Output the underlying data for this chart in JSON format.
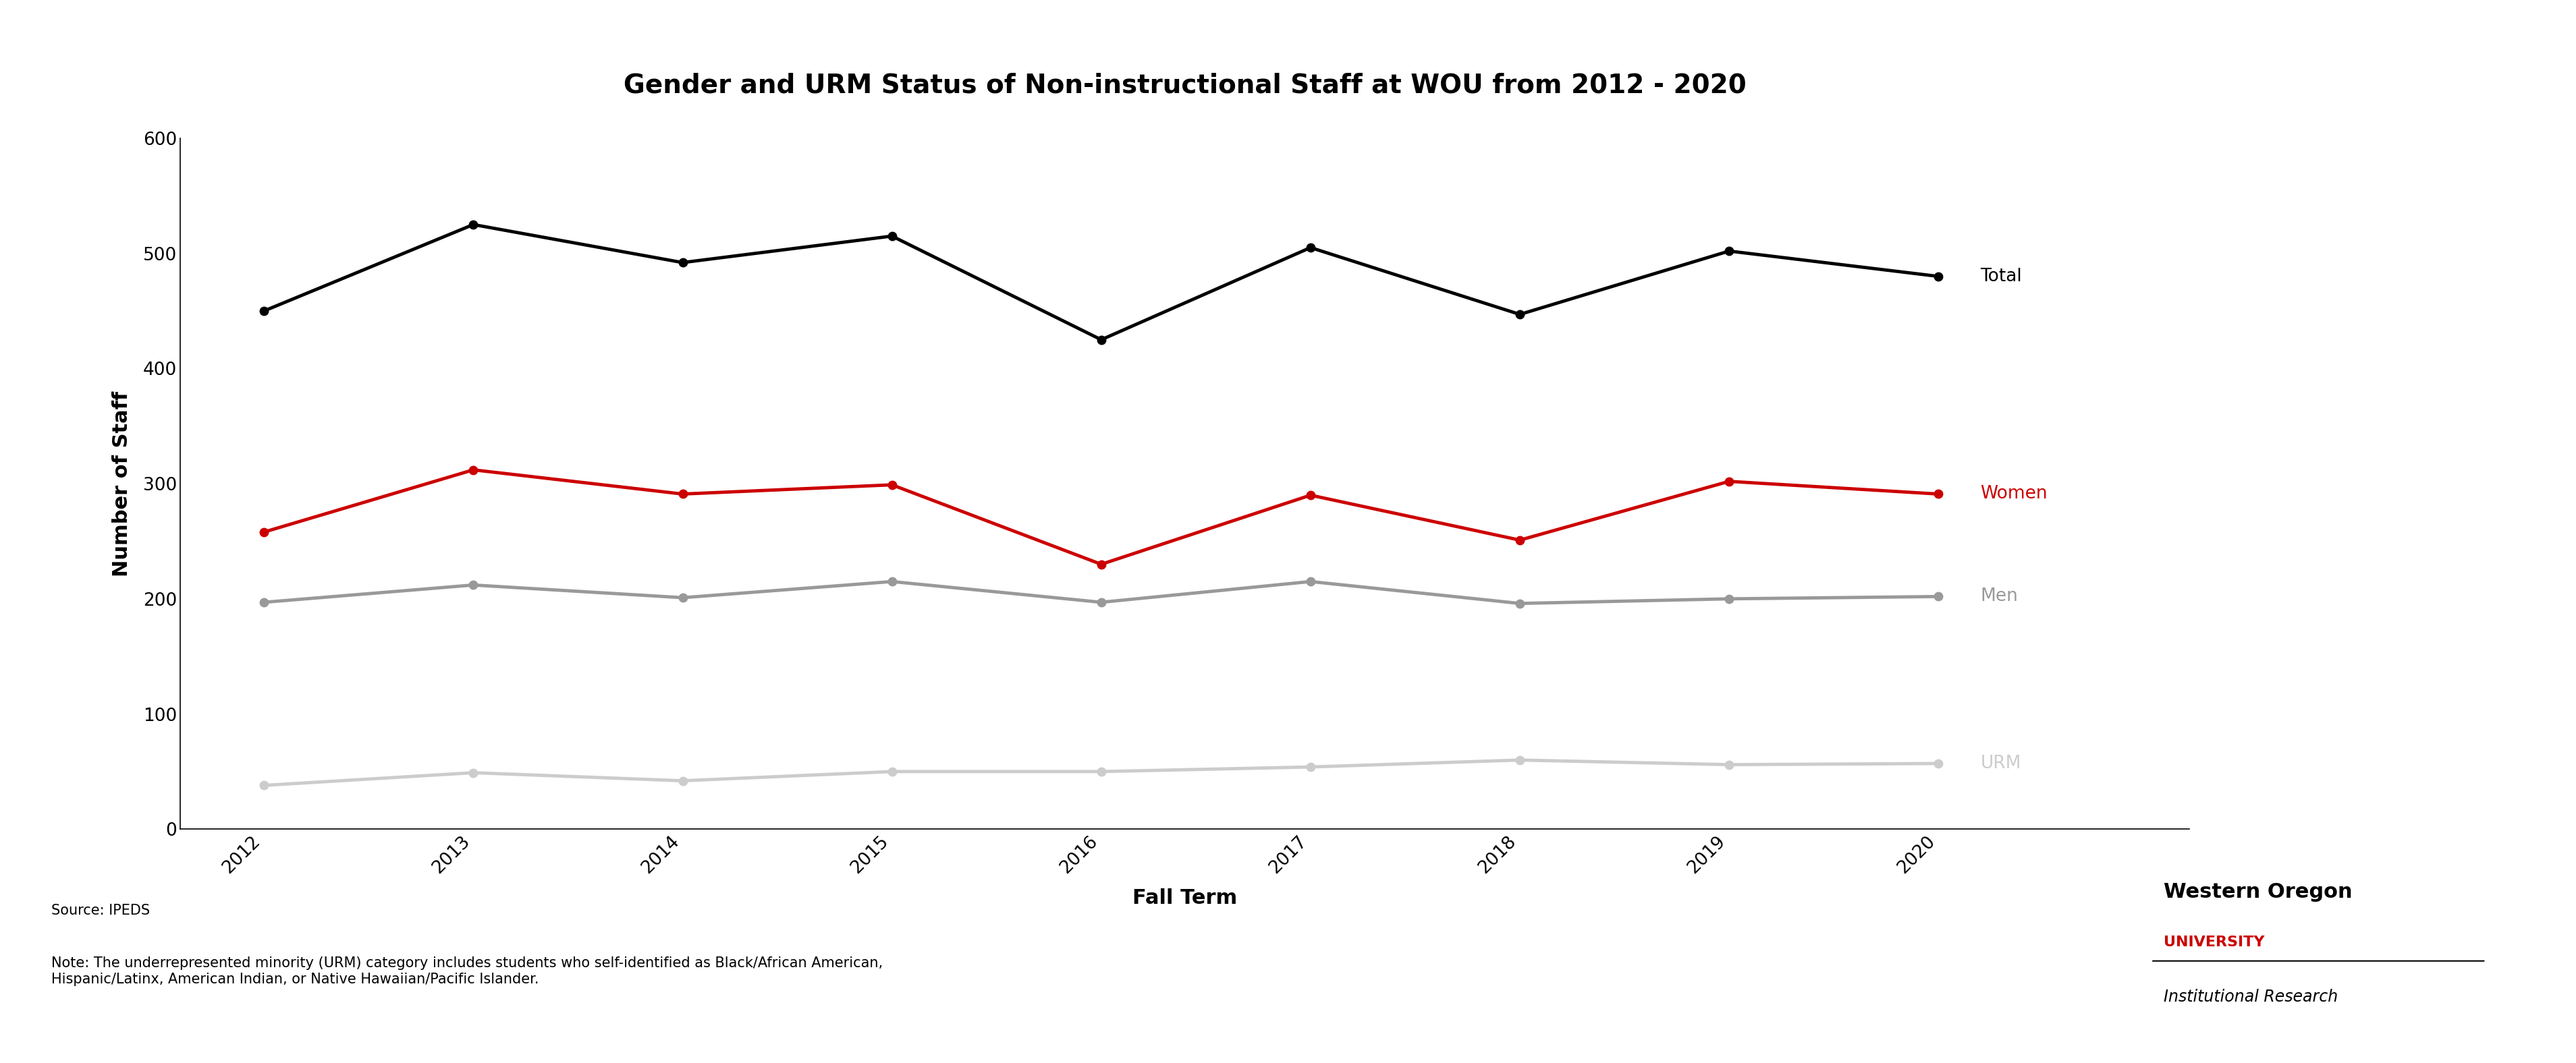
{
  "title": "Gender and URM Status of Non-instructional Staff at WOU from 2012 - 2020",
  "xlabel": "Fall Term",
  "ylabel": "Number of Staff",
  "years": [
    2012,
    2013,
    2014,
    2015,
    2016,
    2017,
    2018,
    2019,
    2020
  ],
  "total": [
    450,
    525,
    492,
    515,
    425,
    505,
    447,
    502,
    480
  ],
  "women": [
    258,
    312,
    291,
    299,
    230,
    290,
    251,
    302,
    291
  ],
  "men": [
    197,
    212,
    201,
    215,
    197,
    215,
    196,
    200,
    202
  ],
  "urm": [
    38,
    49,
    42,
    50,
    50,
    54,
    60,
    56,
    57
  ],
  "colors": {
    "total": "#000000",
    "women": "#cc0000",
    "men": "#999999",
    "urm": "#cccccc"
  },
  "ylim": [
    0,
    600
  ],
  "yticks": [
    0,
    100,
    200,
    300,
    400,
    500,
    600
  ],
  "legend_labels": [
    "Total",
    "Women",
    "Men",
    "URM"
  ],
  "source_text": "Source: IPEDS",
  "note_text": "Note: The underrepresented minority (URM) category includes students who self-identified as Black/African American,\nHispanic/Latinx, American Indian, or Native Hawaiian/Pacific Islander.",
  "title_fontsize": 28,
  "axis_label_fontsize": 22,
  "tick_fontsize": 19,
  "legend_fontsize": 19,
  "annotation_fontsize": 15,
  "linewidth": 3.5,
  "markersize": 9,
  "background_color": "#ffffff",
  "figure_width": 38.17,
  "figure_height": 15.76
}
